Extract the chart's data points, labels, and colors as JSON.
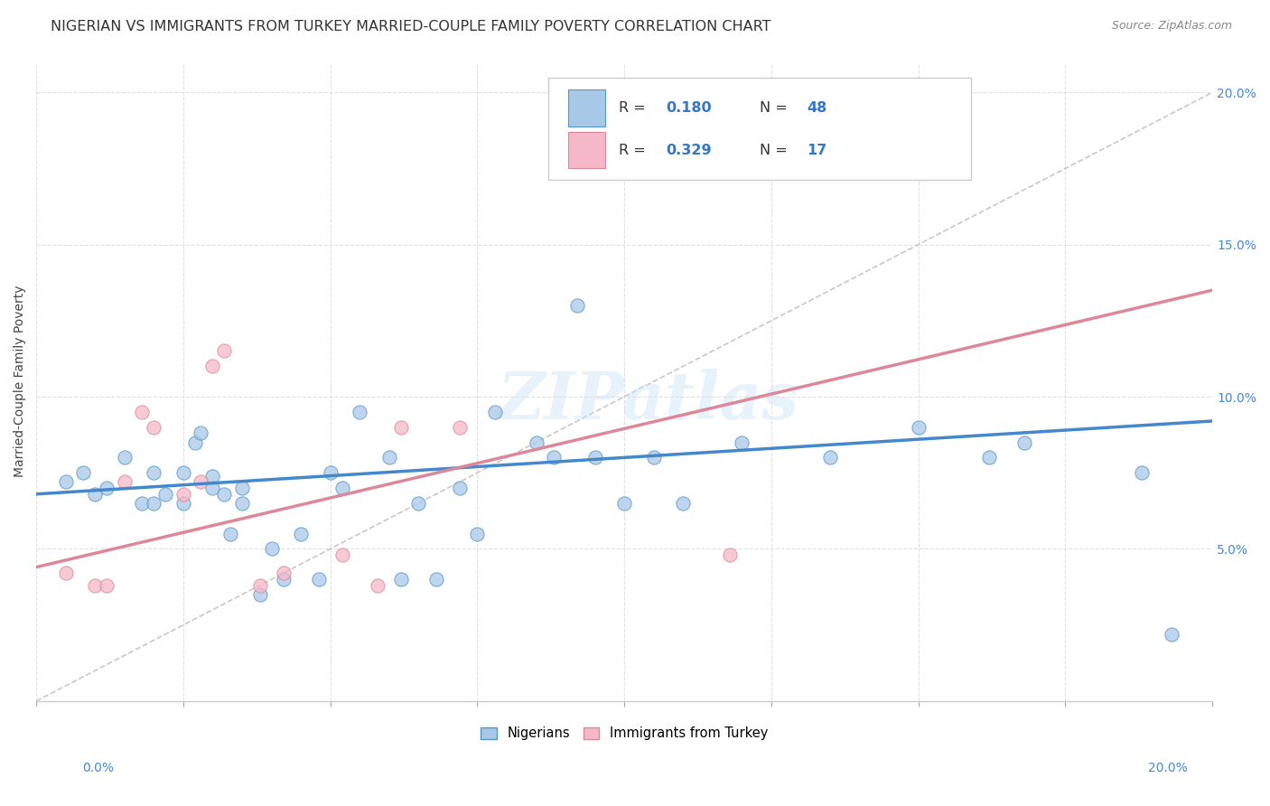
{
  "title": "NIGERIAN VS IMMIGRANTS FROM TURKEY MARRIED-COUPLE FAMILY POVERTY CORRELATION CHART",
  "source": "Source: ZipAtlas.com",
  "ylabel": "Married-Couple Family Poverty",
  "xlim": [
    0.0,
    0.2
  ],
  "ylim": [
    0.0,
    0.21
  ],
  "xticks": [
    0.0,
    0.025,
    0.05,
    0.075,
    0.1,
    0.125,
    0.15,
    0.175,
    0.2
  ],
  "xticklabels_bottom": [
    "0.0%",
    "",
    "",
    "",
    "",
    "",
    "",
    "",
    "20.0%"
  ],
  "yticks_right": [
    0.05,
    0.1,
    0.15,
    0.2
  ],
  "yticklabels_right": [
    "5.0%",
    "10.0%",
    "15.0%",
    "20.0%"
  ],
  "nigerian_color": "#a8c8e8",
  "nigerian_edge": "#5599cc",
  "turkey_color": "#f5b8c8",
  "turkey_edge": "#dd8899",
  "nigerian_R": "0.180",
  "nigerian_N": "48",
  "turkey_R": "0.329",
  "turkey_N": "17",
  "legend_label_1": "Nigerians",
  "legend_label_2": "Immigrants from Turkey",
  "watermark": "ZIPatlas",
  "nigerian_scatter_x": [
    0.005,
    0.008,
    0.01,
    0.012,
    0.015,
    0.018,
    0.02,
    0.02,
    0.022,
    0.025,
    0.025,
    0.027,
    0.028,
    0.03,
    0.03,
    0.032,
    0.033,
    0.035,
    0.035,
    0.038,
    0.04,
    0.042,
    0.045,
    0.048,
    0.05,
    0.052,
    0.055,
    0.06,
    0.062,
    0.065,
    0.068,
    0.072,
    0.075,
    0.078,
    0.085,
    0.088,
    0.092,
    0.095,
    0.1,
    0.105,
    0.11,
    0.12,
    0.135,
    0.15,
    0.162,
    0.168,
    0.188,
    0.193
  ],
  "nigerian_scatter_y": [
    0.072,
    0.075,
    0.068,
    0.07,
    0.08,
    0.065,
    0.065,
    0.075,
    0.068,
    0.065,
    0.075,
    0.085,
    0.088,
    0.07,
    0.074,
    0.068,
    0.055,
    0.065,
    0.07,
    0.035,
    0.05,
    0.04,
    0.055,
    0.04,
    0.075,
    0.07,
    0.095,
    0.08,
    0.04,
    0.065,
    0.04,
    0.07,
    0.055,
    0.095,
    0.085,
    0.08,
    0.13,
    0.08,
    0.065,
    0.08,
    0.065,
    0.085,
    0.08,
    0.09,
    0.08,
    0.085,
    0.075,
    0.022
  ],
  "turkey_scatter_x": [
    0.005,
    0.01,
    0.012,
    0.015,
    0.018,
    0.02,
    0.025,
    0.028,
    0.03,
    0.032,
    0.038,
    0.042,
    0.052,
    0.058,
    0.062,
    0.072,
    0.118
  ],
  "turkey_scatter_y": [
    0.042,
    0.038,
    0.038,
    0.072,
    0.095,
    0.09,
    0.068,
    0.072,
    0.11,
    0.115,
    0.038,
    0.042,
    0.048,
    0.038,
    0.09,
    0.09,
    0.048
  ],
  "nigerian_line_x": [
    0.0,
    0.2
  ],
  "nigerian_line_y": [
    0.068,
    0.092
  ],
  "turkey_line_x": [
    0.0,
    0.2
  ],
  "turkey_line_y": [
    0.044,
    0.135
  ],
  "diagonal_line_x": [
    0.0,
    0.2
  ],
  "diagonal_line_y": [
    0.0,
    0.2
  ],
  "bg_color": "#ffffff",
  "grid_color": "#e0e0e0",
  "title_color": "#333333",
  "source_color": "#888888",
  "right_tick_color": "#4488dd",
  "bottom_label_color": "#4488dd",
  "title_fontsize": 11.5,
  "axis_label_fontsize": 10,
  "tick_fontsize": 10,
  "legend_R_N_color": "#3377cc",
  "legend_text_color": "#333333"
}
